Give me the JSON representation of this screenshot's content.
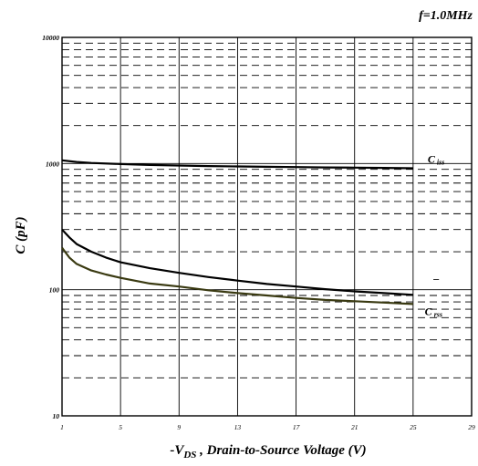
{
  "chart_data": {
    "type": "line",
    "title": "f=1.0MHz",
    "xlabel_prefix": "-V",
    "xlabel_sub": "DS",
    "xlabel_suffix": " , Drain-to-Source Voltage (V)",
    "ylabel": "C (pF)",
    "x_ticks": [
      1,
      5,
      9,
      13,
      17,
      21,
      25,
      29
    ],
    "y_ticks": [
      10,
      100,
      1000,
      10000
    ],
    "xlim": [
      1,
      29
    ],
    "ylim": [
      10,
      10000
    ],
    "y_scale": "log",
    "grid": true,
    "annotations": [
      {
        "main": "C",
        "sub": "iss",
        "x": 26,
        "y": 1010
      },
      {
        "main": "–",
        "sub": "",
        "x": 26.4,
        "y": 115
      },
      {
        "main": "C",
        "sub": "rss",
        "x": 25.8,
        "y": 63
      }
    ],
    "series": [
      {
        "color": "#000000",
        "x": [
          1,
          2,
          3,
          5,
          7,
          9,
          11,
          13,
          15,
          17,
          19,
          21,
          23,
          25
        ],
        "y": [
          1060,
          1030,
          1010,
          990,
          975,
          965,
          955,
          948,
          942,
          937,
          932,
          928,
          923,
          918
        ]
      },
      {
        "color": "#000000",
        "x": [
          1,
          1.5,
          2,
          3,
          4,
          5,
          7,
          9,
          11,
          13,
          15,
          17,
          19,
          21,
          23,
          25
        ],
        "y": [
          300,
          260,
          230,
          200,
          180,
          165,
          148,
          136,
          126,
          118,
          111,
          106,
          101,
          97,
          94,
          91
        ]
      },
      {
        "color": "#3a3a12",
        "x": [
          1,
          1.5,
          2,
          3,
          4,
          5,
          7,
          9,
          11,
          13,
          15,
          17,
          19,
          21,
          23,
          25
        ],
        "y": [
          215,
          180,
          160,
          142,
          132,
          124,
          112,
          106,
          99,
          94,
          90,
          86,
          83,
          81,
          79,
          77
        ]
      }
    ]
  }
}
